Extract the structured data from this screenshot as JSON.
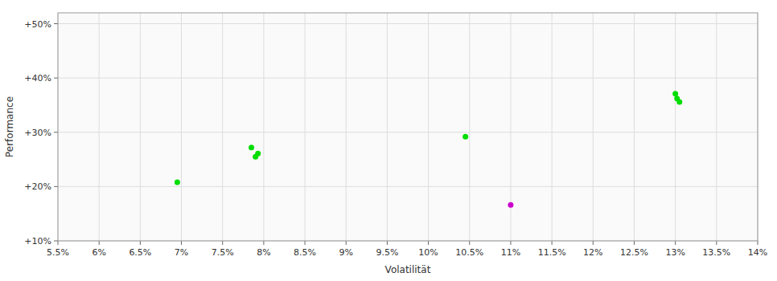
{
  "chart_data": {
    "type": "scatter",
    "xlabel": "Volatilität",
    "ylabel": "Performance",
    "series": [
      {
        "color": "#00dd00",
        "x": [
          0.0695,
          0.0785,
          0.079,
          0.0793,
          0.1045,
          0.13,
          0.1302,
          0.1305
        ],
        "values": [
          0.208,
          0.272,
          0.255,
          0.261,
          0.292,
          0.371,
          0.362,
          0.356
        ]
      },
      {
        "color": "#cc00cc",
        "x": [
          0.11
        ],
        "values": [
          0.166
        ]
      }
    ],
    "xlim": [
      0.055,
      0.14
    ],
    "ylim": [
      0.1,
      0.52
    ],
    "xticks": [
      {
        "value": 0.055,
        "label": "5.5%"
      },
      {
        "value": 0.06,
        "label": "6%"
      },
      {
        "value": 0.065,
        "label": "6.5%"
      },
      {
        "value": 0.07,
        "label": "7%"
      },
      {
        "value": 0.075,
        "label": "7.5%"
      },
      {
        "value": 0.08,
        "label": "8%"
      },
      {
        "value": 0.085,
        "label": "8.5%"
      },
      {
        "value": 0.09,
        "label": "9%"
      },
      {
        "value": 0.095,
        "label": "9.5%"
      },
      {
        "value": 0.1,
        "label": "10%"
      },
      {
        "value": 0.105,
        "label": "10.5%"
      },
      {
        "value": 0.11,
        "label": "11%"
      },
      {
        "value": 0.115,
        "label": "11.5%"
      },
      {
        "value": 0.12,
        "label": "12%"
      },
      {
        "value": 0.125,
        "label": "12.5%"
      },
      {
        "value": 0.13,
        "label": "13%"
      },
      {
        "value": 0.135,
        "label": "13.5%"
      },
      {
        "value": 0.14,
        "label": "14%"
      }
    ],
    "yticks": [
      {
        "value": 0.1,
        "label": "+10%"
      },
      {
        "value": 0.2,
        "label": "+20%"
      },
      {
        "value": 0.3,
        "label": "+30%"
      },
      {
        "value": 0.4,
        "label": "+40%"
      },
      {
        "value": 0.5,
        "label": "+50%"
      }
    ],
    "grid": true
  }
}
